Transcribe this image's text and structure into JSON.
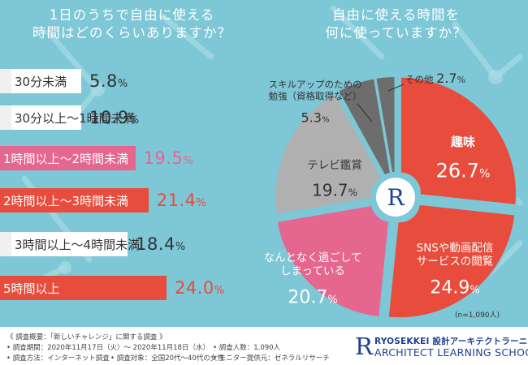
{
  "colors": {
    "background": "#7ec7d6",
    "highlight_pink": "#e5668f",
    "highlight_red": "#e74c3c",
    "bar_gray": "#555555",
    "pie_gray_light": "#b0b0b0",
    "pie_gray_dark": "#6d6d6d",
    "logo_blue": "#1f3f8f"
  },
  "left_title": {
    "line1": "1日のうちで自由に使える",
    "line2": "時間はどのくらいありますか？"
  },
  "right_title": {
    "line1": "自由に使える時間を",
    "line2": "何に使っていますか？"
  },
  "chart_data": [
    {
      "type": "bar",
      "orientation": "horizontal",
      "categories": [
        "30分未満",
        "30分以上～1時間未満",
        "1時間以上～2時間未満",
        "2時間以上～3時間未満",
        "3時間以上～4時間未満",
        "5時間以上"
      ],
      "values": [
        5.8,
        10.9,
        19.5,
        21.4,
        18.4,
        24.0
      ],
      "value_labels": [
        "5.8",
        "10.9",
        "19.5",
        "21.4",
        "18.4",
        "24.0"
      ],
      "unit": "%",
      "bar_colors": [
        "#555555",
        "#555555",
        "#e5668f",
        "#e74c3c",
        "#555555",
        "#e74c3c"
      ],
      "xlim": [
        0,
        24
      ]
    },
    {
      "type": "pie",
      "categories": [
        "趣味",
        "SNSや動画配信サービスの閲覧",
        "なんとなく過ごしてしまっている",
        "テレビ鑑賞",
        "スキルアップのための勉強（資格取得など）",
        "その他"
      ],
      "values": [
        26.7,
        24.9,
        20.7,
        19.7,
        5.3,
        2.7
      ],
      "value_labels": [
        "26.7",
        "24.9",
        "20.7",
        "19.7",
        "5.3",
        "2.7"
      ],
      "unit": "%",
      "slice_colors": [
        "#e74c3c",
        "#e74c3c",
        "#e5668f",
        "#b0b0b0",
        "#6d6d6d",
        "#6d6d6d"
      ],
      "label_lines": [
        [
          "趣味"
        ],
        [
          "SNSや動画配信",
          "サービスの閲覧"
        ],
        [
          "なんとなく過ごして",
          "しまっている"
        ],
        [
          "テレビ鑑賞"
        ],
        [
          "スキルアップのための",
          "勉強（資格取得など）"
        ],
        [
          "その他"
        ]
      ],
      "sample_note": "(n=1,090人)"
    }
  ],
  "survey": {
    "heading": "《 調査概要：「新しいチャレンジ」に関する調査 》",
    "period": "• 調査期間：2020年11月17日（火）～ 2020年11月18日（水）",
    "count": "• 調査人数：1,090人",
    "method": "• 調査方法：インターネット調査",
    "target": "• 調査対象：全国20代～40代の女性",
    "provider": "• モニター提供元：ゼネラルリサーチ"
  },
  "logo": {
    "mark": "R",
    "line1": "RYOSEKKEI 設計アーキテクトラーニング",
    "line2": "ARCHITECT LEARNING SCHOOL"
  }
}
